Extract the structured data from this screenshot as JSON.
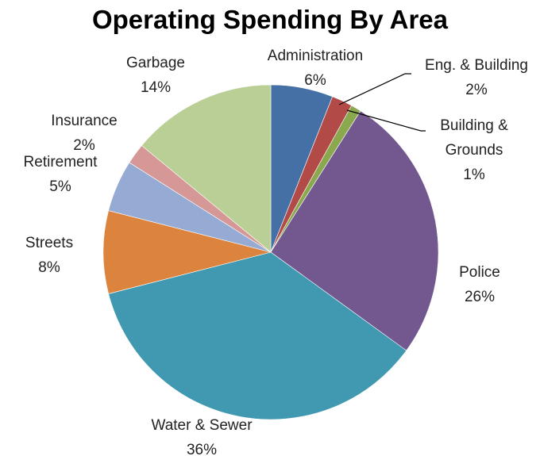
{
  "chart_data": {
    "type": "pie",
    "title": "Operating Spending  By Area",
    "legend": "none",
    "slices": [
      {
        "label": "Administration",
        "value": 6,
        "pct_label": "6%",
        "color": "#4470a6"
      },
      {
        "label": "Eng. & Building",
        "value": 2,
        "pct_label": "2%",
        "color": "#b24a47"
      },
      {
        "label": "Building & Grounds",
        "label_lines": [
          "Building &",
          "Grounds"
        ],
        "value": 1,
        "pct_label": "1%",
        "color": "#8aa84e"
      },
      {
        "label": "Police",
        "value": 26,
        "pct_label": "26%",
        "color": "#72588f"
      },
      {
        "label": "Water & Sewer",
        "value": 36,
        "pct_label": "36%",
        "color": "#4099b0"
      },
      {
        "label": "Streets",
        "value": 8,
        "pct_label": "8%",
        "color": "#dc843e"
      },
      {
        "label": "Retirement",
        "value": 5,
        "pct_label": "5%",
        "color": "#95abd4"
      },
      {
        "label": "Insurance",
        "value": 2,
        "pct_label": "2%",
        "color": "#d59896"
      },
      {
        "label": "Garbage",
        "value": 14,
        "pct_label": "14%",
        "color": "#bacf95"
      }
    ]
  }
}
